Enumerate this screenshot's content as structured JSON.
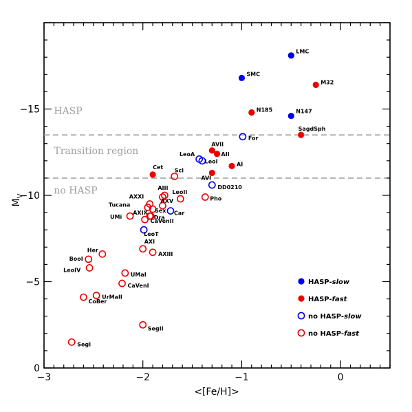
{
  "chart_data": {
    "type": "scatter",
    "xlabel": "<[Fe/H]>",
    "ylabel": "M",
    "ylabel_sub": "V",
    "xlim": [
      -3.0,
      0.5
    ],
    "ylim": [
      0,
      -20
    ],
    "xticks_major": [
      -3,
      -2,
      -1,
      0
    ],
    "xtick_labels": [
      "−3",
      "−2",
      "−1",
      "0"
    ],
    "yticks_major": [
      0,
      -5,
      -10,
      -15
    ],
    "ytick_labels": [
      "0",
      "−5",
      "−10",
      "−15"
    ],
    "hlines": [
      {
        "y": -13.5,
        "style": "dashed",
        "color": "#a0a0a0"
      },
      {
        "y": -11.0,
        "style": "dashed",
        "color": "#a0a0a0"
      }
    ],
    "region_labels": [
      {
        "text": "HASP",
        "x": -2.9,
        "y": -14.7
      },
      {
        "text": "Transition region",
        "x": -2.9,
        "y": -12.4
      },
      {
        "text": "no HASP",
        "x": -2.9,
        "y": -10.1
      }
    ],
    "colors": {
      "blue": "#0000ee",
      "red": "#ee0000"
    },
    "series": [
      {
        "name": "HASP-slow",
        "color": "blue",
        "filled": true,
        "points": [
          {
            "label": "LMC",
            "x": -0.5,
            "y": -18.1
          },
          {
            "label": "SMC",
            "x": -1.0,
            "y": -16.8
          },
          {
            "label": "N147",
            "x": -0.5,
            "y": -14.6
          }
        ]
      },
      {
        "name": "HASP-fast",
        "color": "red",
        "filled": true,
        "points": [
          {
            "label": "M32",
            "x": -0.25,
            "y": -16.4
          },
          {
            "label": "N185",
            "x": -0.9,
            "y": -14.8
          },
          {
            "label": "SagdSph",
            "x": -0.4,
            "y": -13.5
          },
          {
            "label": "AVII",
            "x": -1.3,
            "y": -12.6
          },
          {
            "label": "AII",
            "x": -1.25,
            "y": -12.4
          },
          {
            "label": "AI",
            "x": -1.1,
            "y": -11.7
          },
          {
            "label": "AVI",
            "x": -1.3,
            "y": -11.3
          },
          {
            "label": "Cet",
            "x": -1.9,
            "y": -11.2
          }
        ]
      },
      {
        "name": "no HASP-slow",
        "color": "blue",
        "filled": false,
        "points": [
          {
            "label": "For",
            "x": -0.99,
            "y": -13.4
          },
          {
            "label": "LeoA",
            "x": -1.4,
            "y": -12.0
          },
          {
            "label": "LeoI",
            "x": -1.43,
            "y": -12.1
          },
          {
            "label": "DD0210",
            "x": -1.3,
            "y": -10.6
          },
          {
            "label": "Car",
            "x": -1.72,
            "y": -9.1
          },
          {
            "label": "LeoT",
            "x": -1.99,
            "y": -8.0
          }
        ]
      },
      {
        "name": "no HASP-fast",
        "color": "red",
        "filled": false,
        "points": [
          {
            "label": "Scl",
            "x": -1.68,
            "y": -11.1
          },
          {
            "label": "AIII",
            "x": -1.78,
            "y": -10.0
          },
          {
            "label": "",
            "x": -1.8,
            "y": -9.9
          },
          {
            "label": "AXXI",
            "x": -1.93,
            "y": -9.5
          },
          {
            "label": "LeoII",
            "x": -1.62,
            "y": -9.8
          },
          {
            "label": "Pho",
            "x": -1.37,
            "y": -9.9
          },
          {
            "label": "Tucana",
            "x": -1.95,
            "y": -9.3
          },
          {
            "label": "Sex",
            "x": -1.9,
            "y": -9.2
          },
          {
            "label": "AXV",
            "x": -1.8,
            "y": -9.4
          },
          {
            "label": "AXIX",
            "x": -1.92,
            "y": -8.8
          },
          {
            "label": "Dra",
            "x": -1.93,
            "y": -8.8
          },
          {
            "label": "UMi",
            "x": -2.13,
            "y": -8.8
          },
          {
            "label": "CaVenII",
            "x": -1.98,
            "y": -8.6
          },
          {
            "label": "AXI",
            "x": -2.0,
            "y": -6.9
          },
          {
            "label": "AXIII",
            "x": -1.9,
            "y": -6.7
          },
          {
            "label": "Her",
            "x": -2.41,
            "y": -6.6
          },
          {
            "label": "BooI",
            "x": -2.55,
            "y": -6.3
          },
          {
            "label": "LeoIV",
            "x": -2.54,
            "y": -5.8
          },
          {
            "label": "UMaI",
            "x": -2.18,
            "y": -5.5
          },
          {
            "label": "CaVenI",
            "x": -2.21,
            "y": -4.9
          },
          {
            "label": "UrMaII",
            "x": -2.47,
            "y": -4.2
          },
          {
            "label": "CoBer",
            "x": -2.6,
            "y": -4.1
          },
          {
            "label": "SegII",
            "x": -2.0,
            "y": -2.5
          },
          {
            "label": "SegI",
            "x": -2.72,
            "y": -1.5
          }
        ]
      }
    ],
    "legend": {
      "placement": "bottom-right",
      "entries": [
        "HASP-slow",
        "HASP-fast",
        "no HASP-slow",
        "no HASP-fast"
      ]
    }
  }
}
